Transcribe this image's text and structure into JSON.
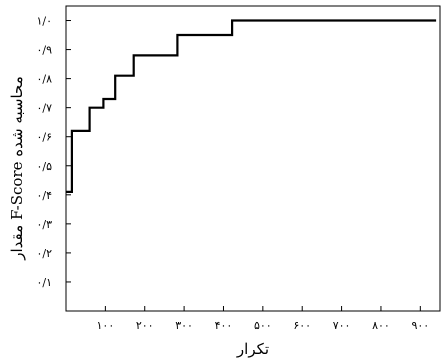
{
  "chart_data": {
    "type": "line",
    "step": true,
    "xlabel": "تکرار",
    "ylabel": "مقدار F-Score محاسبه شده",
    "xlim": [
      0,
      950
    ],
    "ylim": [
      0,
      1.05
    ],
    "x_ticks": [
      {
        "value": 100,
        "label": "۱۰۰"
      },
      {
        "value": 200,
        "label": "۲۰۰"
      },
      {
        "value": 300,
        "label": "۳۰۰"
      },
      {
        "value": 400,
        "label": "۴۰۰"
      },
      {
        "value": 500,
        "label": "۵۰۰"
      },
      {
        "value": 600,
        "label": "۶۰۰"
      },
      {
        "value": 700,
        "label": "۷۰۰"
      },
      {
        "value": 800,
        "label": "۸۰۰"
      },
      {
        "value": 900,
        "label": "۹۰۰"
      }
    ],
    "y_ticks": [
      {
        "value": 0.1,
        "label": "۰/۱"
      },
      {
        "value": 0.2,
        "label": "۰/۲"
      },
      {
        "value": 0.3,
        "label": "۰/۳"
      },
      {
        "value": 0.4,
        "label": "۰/۴"
      },
      {
        "value": 0.5,
        "label": "۰/۵"
      },
      {
        "value": 0.6,
        "label": "۰/۶"
      },
      {
        "value": 0.7,
        "label": "۰/۷"
      },
      {
        "value": 0.8,
        "label": "۰/۸"
      },
      {
        "value": 0.9,
        "label": "۰/۹"
      },
      {
        "value": 1.0,
        "label": "۱/۰"
      }
    ],
    "series": [
      {
        "x": [
          0,
          15,
          15,
          60,
          60,
          95,
          95,
          125,
          125,
          172,
          172,
          283,
          283,
          422,
          422,
          437,
          437,
          940
        ],
        "y": [
          0.41,
          0.41,
          0.62,
          0.62,
          0.7,
          0.7,
          0.73,
          0.73,
          0.81,
          0.81,
          0.88,
          0.88,
          0.95,
          0.95,
          1.0,
          1.0,
          1.0,
          1.0
        ]
      }
    ],
    "grid": false,
    "line_color": "#000000"
  }
}
